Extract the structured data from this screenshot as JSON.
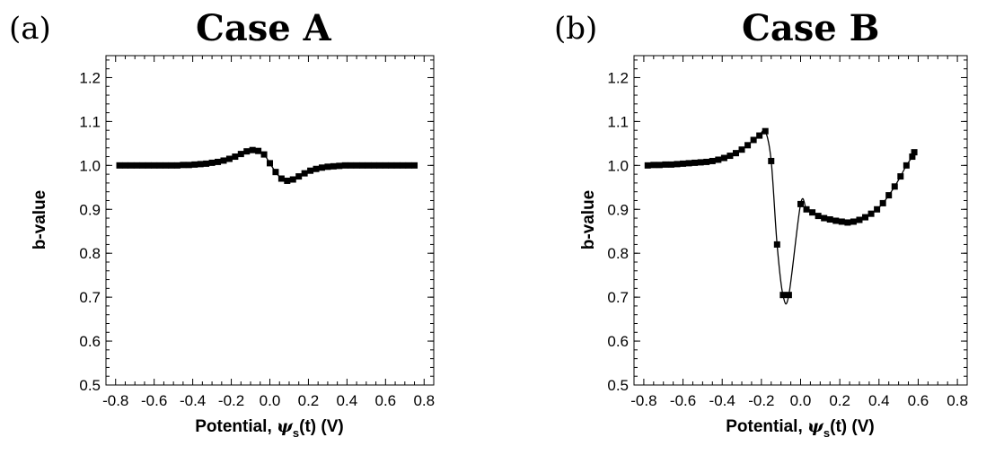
{
  "panels": [
    {
      "label": "(a)",
      "title": "Case A",
      "xlabel_pre": "Potential, ",
      "xlabel_psi": "ψ",
      "xlabel_sub": "s",
      "xlabel_post": "(t) (V)",
      "ylabel": "b-value"
    },
    {
      "label": "(b)",
      "title": "Case B",
      "xlabel_pre": "Potential, ",
      "xlabel_psi": "ψ",
      "xlabel_sub": "s",
      "xlabel_post": "(t) (V)",
      "ylabel": "b-value"
    }
  ],
  "chart_data": [
    {
      "type": "line",
      "title": "Case A",
      "xlabel": "Potential, ψs(t) (V)",
      "ylabel": "b-value",
      "xlim": [
        -0.85,
        0.85
      ],
      "ylim": [
        0.5,
        1.25
      ],
      "xticks": [
        "-0.8",
        "-0.6",
        "-0.4",
        "-0.2",
        "0.0",
        "0.2",
        "0.4",
        "0.6",
        "0.8"
      ],
      "yticks": [
        "0.5",
        "0.6",
        "0.7",
        "0.8",
        "0.9",
        "1.0",
        "1.1",
        "1.2"
      ],
      "series": [
        {
          "marker": "square",
          "x": [
            -0.78,
            -0.75,
            -0.72,
            -0.69,
            -0.66,
            -0.63,
            -0.6,
            -0.57,
            -0.54,
            -0.51,
            -0.48,
            -0.45,
            -0.42,
            -0.39,
            -0.36,
            -0.33,
            -0.3,
            -0.27,
            -0.24,
            -0.21,
            -0.18,
            -0.15,
            -0.12,
            -0.09,
            -0.06,
            -0.03,
            0.0,
            0.03,
            0.06,
            0.09,
            0.12,
            0.15,
            0.18,
            0.21,
            0.24,
            0.27,
            0.3,
            0.33,
            0.36,
            0.39,
            0.42,
            0.45,
            0.48,
            0.51,
            0.54,
            0.57,
            0.6,
            0.63,
            0.66,
            0.69,
            0.72,
            0.75
          ],
          "y": [
            1.0,
            1.0,
            1.0,
            1.0,
            1.0,
            1.0,
            1.0,
            1.0,
            1.0,
            1.0,
            1.0,
            1.001,
            1.001,
            1.002,
            1.003,
            1.004,
            1.006,
            1.008,
            1.011,
            1.015,
            1.02,
            1.026,
            1.032,
            1.035,
            1.033,
            1.025,
            1.005,
            0.985,
            0.97,
            0.965,
            0.968,
            0.975,
            0.982,
            0.988,
            0.992,
            0.995,
            0.997,
            0.998,
            0.999,
            1.0,
            1.0,
            1.0,
            1.0,
            1.0,
            1.0,
            1.0,
            1.0,
            1.0,
            1.0,
            1.0,
            1.0,
            1.0
          ]
        }
      ]
    },
    {
      "type": "line",
      "title": "Case B",
      "xlabel": "Potential, ψs(t) (V)",
      "ylabel": "b-value",
      "xlim": [
        -0.85,
        0.85
      ],
      "ylim": [
        0.5,
        1.25
      ],
      "xticks": [
        "-0.8",
        "-0.6",
        "-0.4",
        "-0.2",
        "0.0",
        "0.2",
        "0.4",
        "0.6",
        "0.8"
      ],
      "yticks": [
        "0.5",
        "0.6",
        "0.7",
        "0.8",
        "0.9",
        "1.0",
        "1.1",
        "1.2"
      ],
      "series": [
        {
          "marker": "square",
          "x": [
            -0.78,
            -0.75,
            -0.72,
            -0.69,
            -0.66,
            -0.63,
            -0.6,
            -0.57,
            -0.54,
            -0.51,
            -0.48,
            -0.45,
            -0.42,
            -0.39,
            -0.36,
            -0.33,
            -0.3,
            -0.27,
            -0.24,
            -0.21,
            -0.18,
            -0.15,
            -0.12,
            -0.09,
            -0.06,
            0.0,
            0.03,
            0.06,
            0.09,
            0.12,
            0.15,
            0.18,
            0.21,
            0.24,
            0.27,
            0.3,
            0.33,
            0.36,
            0.39,
            0.42,
            0.45,
            0.48,
            0.51,
            0.54,
            0.57,
            0.58
          ],
          "y": [
            1.0,
            1.001,
            1.001,
            1.002,
            1.002,
            1.003,
            1.004,
            1.005,
            1.006,
            1.007,
            1.008,
            1.01,
            1.013,
            1.017,
            1.022,
            1.028,
            1.036,
            1.046,
            1.058,
            1.068,
            1.078,
            1.01,
            0.82,
            0.705,
            0.705,
            0.912,
            0.9,
            0.893,
            0.885,
            0.88,
            0.877,
            0.874,
            0.872,
            0.87,
            0.872,
            0.876,
            0.882,
            0.89,
            0.9,
            0.914,
            0.932,
            0.952,
            0.975,
            1.0,
            1.02,
            1.03
          ]
        }
      ]
    }
  ]
}
